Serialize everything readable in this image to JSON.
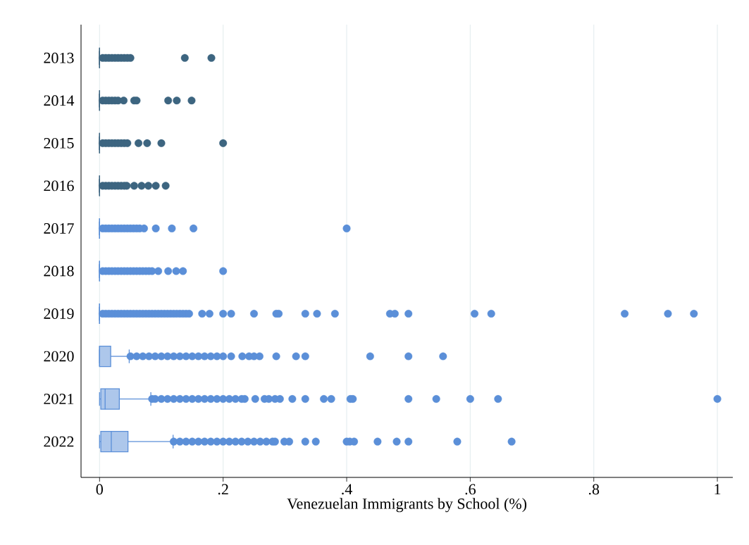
{
  "chart_data": {
    "type": "box",
    "orientation": "horizontal",
    "xlabel": "Venezuelan Immigrants by School (%)",
    "categories": [
      "2013",
      "2014",
      "2015",
      "2016",
      "2017",
      "2018",
      "2019",
      "2020",
      "2021",
      "2022"
    ],
    "colors": [
      "#3d6580",
      "#3d6580",
      "#3d6580",
      "#3d6580",
      "#5b8fd8",
      "#5b8fd8",
      "#5b8fd8",
      "#5b8fd8",
      "#5b8fd8",
      "#5b8fd8"
    ],
    "boxes": [
      {
        "low": 0,
        "q1": 0,
        "median": 0,
        "q3": 0,
        "high": 0,
        "outliers": [
          0.005,
          0.01,
          0.015,
          0.02,
          0.025,
          0.03,
          0.035,
          0.04,
          0.045,
          0.05,
          0.138,
          0.181
        ]
      },
      {
        "low": 0,
        "q1": 0,
        "median": 0,
        "q3": 0,
        "high": 0,
        "outliers": [
          0.005,
          0.01,
          0.015,
          0.02,
          0.025,
          0.03,
          0.039,
          0.056,
          0.06,
          0.111,
          0.125,
          0.149
        ]
      },
      {
        "low": 0,
        "q1": 0,
        "median": 0,
        "q3": 0,
        "high": 0,
        "outliers": [
          0.005,
          0.01,
          0.015,
          0.02,
          0.025,
          0.03,
          0.035,
          0.04,
          0.045,
          0.063,
          0.077,
          0.1,
          0.2
        ]
      },
      {
        "low": 0,
        "q1": 0,
        "median": 0,
        "q3": 0,
        "high": 0,
        "outliers": [
          0.005,
          0.01,
          0.015,
          0.02,
          0.025,
          0.03,
          0.035,
          0.04,
          0.044,
          0.056,
          0.068,
          0.079,
          0.091,
          0.107
        ]
      },
      {
        "low": 0,
        "q1": 0,
        "median": 0,
        "q3": 0,
        "high": 0,
        "outliers": [
          0.005,
          0.01,
          0.015,
          0.02,
          0.025,
          0.03,
          0.035,
          0.04,
          0.045,
          0.05,
          0.055,
          0.06,
          0.065,
          0.072,
          0.091,
          0.117,
          0.152,
          0.4
        ]
      },
      {
        "low": 0,
        "q1": 0,
        "median": 0,
        "q3": 0,
        "high": 0,
        "outliers": [
          0.005,
          0.01,
          0.015,
          0.02,
          0.025,
          0.03,
          0.035,
          0.04,
          0.045,
          0.05,
          0.055,
          0.06,
          0.065,
          0.07,
          0.075,
          0.08,
          0.085,
          0.095,
          0.111,
          0.124,
          0.135,
          0.2
        ]
      },
      {
        "low": 0,
        "q1": 0,
        "median": 0,
        "q3": 0,
        "high": 0,
        "outliers": [
          0.005,
          0.01,
          0.015,
          0.02,
          0.025,
          0.03,
          0.035,
          0.04,
          0.045,
          0.05,
          0.055,
          0.06,
          0.065,
          0.07,
          0.075,
          0.08,
          0.085,
          0.09,
          0.095,
          0.1,
          0.105,
          0.11,
          0.115,
          0.12,
          0.125,
          0.13,
          0.135,
          0.14,
          0.145,
          0.166,
          0.178,
          0.2,
          0.213,
          0.25,
          0.286,
          0.29,
          0.333,
          0.352,
          0.381,
          0.47,
          0.478,
          0.5,
          0.607,
          0.634,
          0.85,
          0.92,
          0.962
        ]
      },
      {
        "low": 0,
        "q1": 0,
        "median": 0,
        "q3": 0.018,
        "high": 0.048,
        "outliers": [
          0.05,
          0.06,
          0.07,
          0.08,
          0.09,
          0.1,
          0.11,
          0.12,
          0.13,
          0.14,
          0.15,
          0.16,
          0.17,
          0.18,
          0.19,
          0.2,
          0.213,
          0.231,
          0.242,
          0.25,
          0.259,
          0.286,
          0.318,
          0.333,
          0.438,
          0.5,
          0.556
        ]
      },
      {
        "low": 0,
        "q1": 0.002,
        "median": 0.009,
        "q3": 0.032,
        "high": 0.083,
        "outliers": [
          0.085,
          0.09,
          0.1,
          0.11,
          0.12,
          0.13,
          0.14,
          0.15,
          0.16,
          0.17,
          0.18,
          0.19,
          0.2,
          0.21,
          0.22,
          0.23,
          0.235,
          0.252,
          0.267,
          0.274,
          0.284,
          0.292,
          0.312,
          0.333,
          0.363,
          0.375,
          0.406,
          0.41,
          0.5,
          0.545,
          0.6,
          0.645,
          1.0
        ]
      },
      {
        "low": 0,
        "q1": 0.002,
        "median": 0.019,
        "q3": 0.046,
        "high": 0.119,
        "outliers": [
          0.12,
          0.13,
          0.14,
          0.15,
          0.16,
          0.17,
          0.18,
          0.19,
          0.2,
          0.21,
          0.22,
          0.23,
          0.24,
          0.25,
          0.26,
          0.27,
          0.28,
          0.284,
          0.299,
          0.307,
          0.333,
          0.35,
          0.4,
          0.405,
          0.412,
          0.45,
          0.481,
          0.5,
          0.579,
          0.667
        ]
      }
    ],
    "xlim": [
      -0.03,
      1.025
    ],
    "xticks": [
      0,
      {
        "value": 0.2,
        "label": ".2"
      },
      {
        "value": 0.4,
        "label": ".4"
      },
      {
        "value": 0.6,
        "label": ".6"
      },
      {
        "value": 0.8,
        "label": ".8"
      },
      1
    ],
    "grid": "x",
    "marker": "circle"
  }
}
